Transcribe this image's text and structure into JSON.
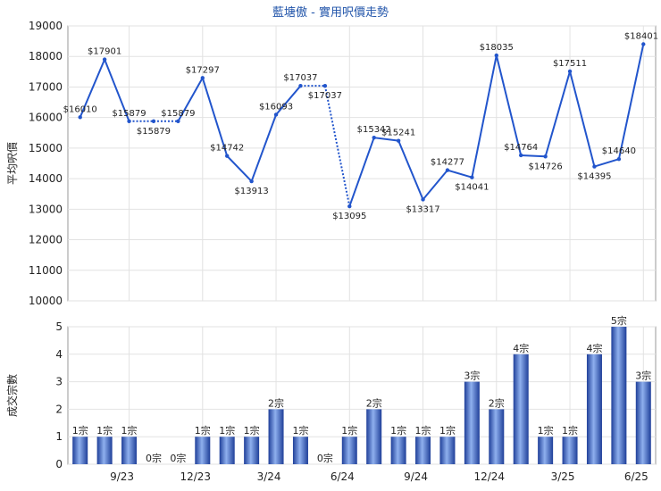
{
  "chart_data": [
    {
      "type": "line",
      "title": "藍塘傲 - 實用呎價走勢",
      "ylabel": "平均呎價",
      "ylim": [
        10000,
        19000
      ],
      "yticks": [
        10000,
        11000,
        12000,
        13000,
        14000,
        15000,
        16000,
        17000,
        18000,
        19000
      ],
      "values": [
        16010,
        17901,
        15879,
        15879,
        15879,
        17297,
        14742,
        13913,
        16093,
        17037,
        17037,
        13095,
        15342,
        15241,
        13317,
        14277,
        14041,
        18035,
        14764,
        14726,
        17511,
        14395,
        14640,
        18401
      ],
      "labels": [
        "$16010",
        "$17901",
        "$15879",
        "$15879",
        "$15879",
        "$17297",
        "$14742",
        "$13913",
        "$16093",
        "$17037",
        "$17037",
        "$13095",
        "$15342",
        "$15241",
        "$13317",
        "$14277",
        "$14041",
        "$18035",
        "$14764",
        "$14726",
        "$17511",
        "$14395",
        "$14640",
        "$18401"
      ],
      "interpolated": [
        false,
        false,
        false,
        true,
        false,
        false,
        false,
        false,
        false,
        false,
        true,
        false,
        false,
        false,
        false,
        false,
        false,
        false,
        false,
        false,
        false,
        false,
        false,
        false
      ],
      "line_color": "#2255cc"
    },
    {
      "type": "bar",
      "ylabel": "成交宗數",
      "ylim": [
        0,
        5
      ],
      "yticks": [
        0,
        1,
        2,
        3,
        4,
        5
      ],
      "values": [
        1,
        1,
        1,
        0,
        0,
        1,
        1,
        1,
        2,
        1,
        0,
        1,
        2,
        1,
        1,
        1,
        3,
        2,
        4,
        1,
        1,
        4,
        5,
        3
      ],
      "labels": [
        "1宗",
        "1宗",
        "1宗",
        "0宗",
        "0宗",
        "1宗",
        "1宗",
        "1宗",
        "2宗",
        "1宗",
        "0宗",
        "1宗",
        "2宗",
        "1宗",
        "1宗",
        "1宗",
        "3宗",
        "2宗",
        "4宗",
        "1宗",
        "1宗",
        "4宗",
        "5宗",
        "3宗"
      ],
      "x_tick_labels": [
        "9/23",
        "12/23",
        "3/24",
        "6/24",
        "9/24",
        "12/24",
        "3/25",
        "6/25"
      ],
      "x_tick_index": [
        2,
        5,
        8,
        11,
        14,
        17,
        20,
        23
      ],
      "bar_color": "#3366cc"
    }
  ]
}
